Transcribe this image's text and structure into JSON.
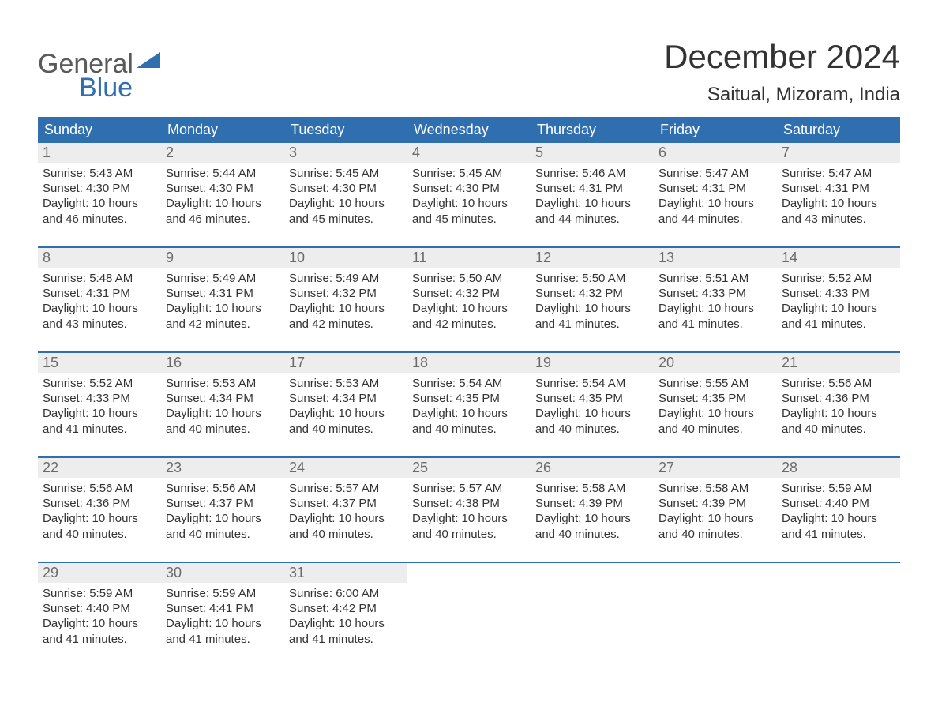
{
  "brand": {
    "part1": "General",
    "part2": "Blue",
    "color1": "#5a5a5a",
    "color2": "#2f6fb0"
  },
  "title": "December 2024",
  "subtitle": "Saitual, Mizoram, India",
  "colors": {
    "header_bg": "#2f6fb0",
    "header_text": "#ffffff",
    "daynum_bg": "#ededed",
    "daynum_text": "#6a6a6a",
    "body_text": "#333333",
    "week_border": "#2f6fb0",
    "page_bg": "#ffffff"
  },
  "typography": {
    "title_fontsize": 42,
    "subtitle_fontsize": 24,
    "header_fontsize": 18,
    "body_fontsize": 15
  },
  "day_headers": [
    "Sunday",
    "Monday",
    "Tuesday",
    "Wednesday",
    "Thursday",
    "Friday",
    "Saturday"
  ],
  "weeks": [
    [
      {
        "n": "1",
        "sunrise": "Sunrise: 5:43 AM",
        "sunset": "Sunset: 4:30 PM",
        "d1": "Daylight: 10 hours",
        "d2": "and 46 minutes."
      },
      {
        "n": "2",
        "sunrise": "Sunrise: 5:44 AM",
        "sunset": "Sunset: 4:30 PM",
        "d1": "Daylight: 10 hours",
        "d2": "and 46 minutes."
      },
      {
        "n": "3",
        "sunrise": "Sunrise: 5:45 AM",
        "sunset": "Sunset: 4:30 PM",
        "d1": "Daylight: 10 hours",
        "d2": "and 45 minutes."
      },
      {
        "n": "4",
        "sunrise": "Sunrise: 5:45 AM",
        "sunset": "Sunset: 4:30 PM",
        "d1": "Daylight: 10 hours",
        "d2": "and 45 minutes."
      },
      {
        "n": "5",
        "sunrise": "Sunrise: 5:46 AM",
        "sunset": "Sunset: 4:31 PM",
        "d1": "Daylight: 10 hours",
        "d2": "and 44 minutes."
      },
      {
        "n": "6",
        "sunrise": "Sunrise: 5:47 AM",
        "sunset": "Sunset: 4:31 PM",
        "d1": "Daylight: 10 hours",
        "d2": "and 44 minutes."
      },
      {
        "n": "7",
        "sunrise": "Sunrise: 5:47 AM",
        "sunset": "Sunset: 4:31 PM",
        "d1": "Daylight: 10 hours",
        "d2": "and 43 minutes."
      }
    ],
    [
      {
        "n": "8",
        "sunrise": "Sunrise: 5:48 AM",
        "sunset": "Sunset: 4:31 PM",
        "d1": "Daylight: 10 hours",
        "d2": "and 43 minutes."
      },
      {
        "n": "9",
        "sunrise": "Sunrise: 5:49 AM",
        "sunset": "Sunset: 4:31 PM",
        "d1": "Daylight: 10 hours",
        "d2": "and 42 minutes."
      },
      {
        "n": "10",
        "sunrise": "Sunrise: 5:49 AM",
        "sunset": "Sunset: 4:32 PM",
        "d1": "Daylight: 10 hours",
        "d2": "and 42 minutes."
      },
      {
        "n": "11",
        "sunrise": "Sunrise: 5:50 AM",
        "sunset": "Sunset: 4:32 PM",
        "d1": "Daylight: 10 hours",
        "d2": "and 42 minutes."
      },
      {
        "n": "12",
        "sunrise": "Sunrise: 5:50 AM",
        "sunset": "Sunset: 4:32 PM",
        "d1": "Daylight: 10 hours",
        "d2": "and 41 minutes."
      },
      {
        "n": "13",
        "sunrise": "Sunrise: 5:51 AM",
        "sunset": "Sunset: 4:33 PM",
        "d1": "Daylight: 10 hours",
        "d2": "and 41 minutes."
      },
      {
        "n": "14",
        "sunrise": "Sunrise: 5:52 AM",
        "sunset": "Sunset: 4:33 PM",
        "d1": "Daylight: 10 hours",
        "d2": "and 41 minutes."
      }
    ],
    [
      {
        "n": "15",
        "sunrise": "Sunrise: 5:52 AM",
        "sunset": "Sunset: 4:33 PM",
        "d1": "Daylight: 10 hours",
        "d2": "and 41 minutes."
      },
      {
        "n": "16",
        "sunrise": "Sunrise: 5:53 AM",
        "sunset": "Sunset: 4:34 PM",
        "d1": "Daylight: 10 hours",
        "d2": "and 40 minutes."
      },
      {
        "n": "17",
        "sunrise": "Sunrise: 5:53 AM",
        "sunset": "Sunset: 4:34 PM",
        "d1": "Daylight: 10 hours",
        "d2": "and 40 minutes."
      },
      {
        "n": "18",
        "sunrise": "Sunrise: 5:54 AM",
        "sunset": "Sunset: 4:35 PM",
        "d1": "Daylight: 10 hours",
        "d2": "and 40 minutes."
      },
      {
        "n": "19",
        "sunrise": "Sunrise: 5:54 AM",
        "sunset": "Sunset: 4:35 PM",
        "d1": "Daylight: 10 hours",
        "d2": "and 40 minutes."
      },
      {
        "n": "20",
        "sunrise": "Sunrise: 5:55 AM",
        "sunset": "Sunset: 4:35 PM",
        "d1": "Daylight: 10 hours",
        "d2": "and 40 minutes."
      },
      {
        "n": "21",
        "sunrise": "Sunrise: 5:56 AM",
        "sunset": "Sunset: 4:36 PM",
        "d1": "Daylight: 10 hours",
        "d2": "and 40 minutes."
      }
    ],
    [
      {
        "n": "22",
        "sunrise": "Sunrise: 5:56 AM",
        "sunset": "Sunset: 4:36 PM",
        "d1": "Daylight: 10 hours",
        "d2": "and 40 minutes."
      },
      {
        "n": "23",
        "sunrise": "Sunrise: 5:56 AM",
        "sunset": "Sunset: 4:37 PM",
        "d1": "Daylight: 10 hours",
        "d2": "and 40 minutes."
      },
      {
        "n": "24",
        "sunrise": "Sunrise: 5:57 AM",
        "sunset": "Sunset: 4:37 PM",
        "d1": "Daylight: 10 hours",
        "d2": "and 40 minutes."
      },
      {
        "n": "25",
        "sunrise": "Sunrise: 5:57 AM",
        "sunset": "Sunset: 4:38 PM",
        "d1": "Daylight: 10 hours",
        "d2": "and 40 minutes."
      },
      {
        "n": "26",
        "sunrise": "Sunrise: 5:58 AM",
        "sunset": "Sunset: 4:39 PM",
        "d1": "Daylight: 10 hours",
        "d2": "and 40 minutes."
      },
      {
        "n": "27",
        "sunrise": "Sunrise: 5:58 AM",
        "sunset": "Sunset: 4:39 PM",
        "d1": "Daylight: 10 hours",
        "d2": "and 40 minutes."
      },
      {
        "n": "28",
        "sunrise": "Sunrise: 5:59 AM",
        "sunset": "Sunset: 4:40 PM",
        "d1": "Daylight: 10 hours",
        "d2": "and 41 minutes."
      }
    ],
    [
      {
        "n": "29",
        "sunrise": "Sunrise: 5:59 AM",
        "sunset": "Sunset: 4:40 PM",
        "d1": "Daylight: 10 hours",
        "d2": "and 41 minutes."
      },
      {
        "n": "30",
        "sunrise": "Sunrise: 5:59 AM",
        "sunset": "Sunset: 4:41 PM",
        "d1": "Daylight: 10 hours",
        "d2": "and 41 minutes."
      },
      {
        "n": "31",
        "sunrise": "Sunrise: 6:00 AM",
        "sunset": "Sunset: 4:42 PM",
        "d1": "Daylight: 10 hours",
        "d2": "and 41 minutes."
      },
      {
        "empty": true
      },
      {
        "empty": true
      },
      {
        "empty": true
      },
      {
        "empty": true
      }
    ]
  ]
}
